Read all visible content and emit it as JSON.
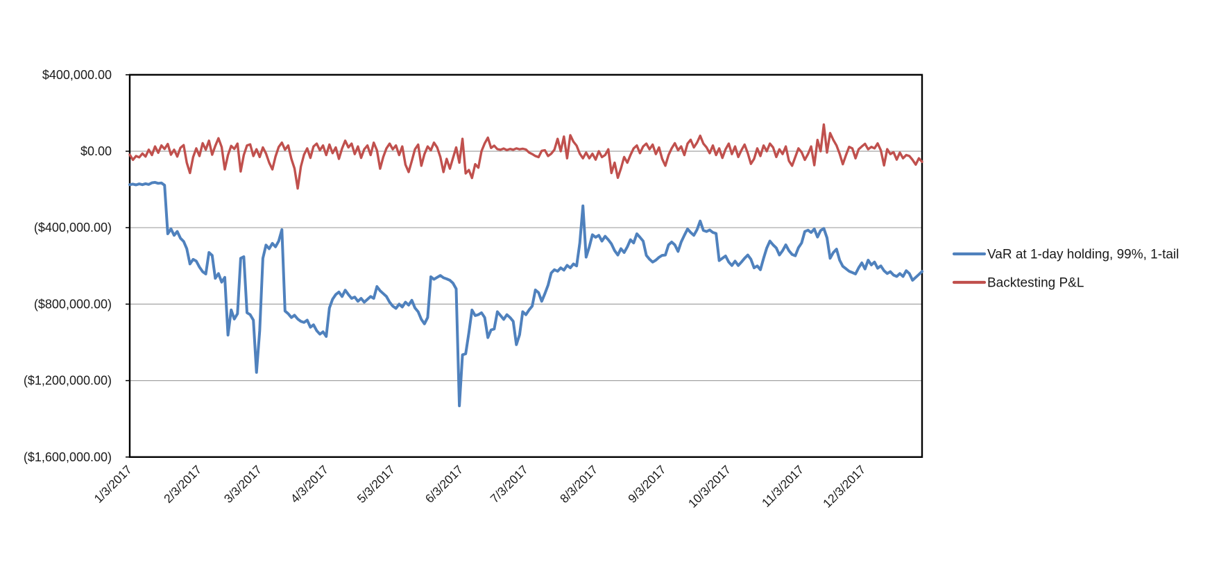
{
  "chart_data": {
    "type": "line",
    "title": "",
    "x_axis": {
      "kind": "date-category",
      "n_points": 251,
      "day_range": [
        0,
        250
      ],
      "tick_labels": [
        "1/3/2017",
        "2/3/2017",
        "3/3/2017",
        "4/3/2017",
        "5/3/2017",
        "6/3/2017",
        "7/3/2017",
        "8/3/2017",
        "9/3/2017",
        "10/3/2017",
        "11/3/2017",
        "12/3/2017"
      ],
      "tick_day_index": [
        0,
        22,
        41,
        62,
        83,
        104.5,
        125,
        147,
        168.5,
        189,
        212,
        231.5
      ],
      "tick_rotation_deg": 45
    },
    "y_axis": {
      "tick_labels": [
        "$400,000.00",
        "$0.00",
        "($400,000.00)",
        "($800,000.00)",
        "($1,200,000.00)",
        "($1,600,000.00)"
      ],
      "tick_values_usd": [
        400000,
        0,
        -400000,
        -800000,
        -1200000,
        -1600000
      ],
      "range_usd": [
        -1600000,
        400000
      ],
      "grid": true
    },
    "legend": {
      "position": "right"
    },
    "unit_note": "series values are approximate, in thousands of USD, one value per trading day of 2017 (Jan 3 - Dec 29)",
    "series": [
      {
        "name": "VaR at 1-day holding, 99%, 1-tail",
        "color": "#4F81BD",
        "values_k_usd": [
          -175,
          -172,
          -176,
          -171,
          -175,
          -170,
          -174,
          -165,
          -163,
          -168,
          -166,
          -178,
          -432,
          -406,
          -440,
          -420,
          -455,
          -472,
          -510,
          -590,
          -566,
          -575,
          -606,
          -630,
          -642,
          -530,
          -545,
          -665,
          -640,
          -685,
          -660,
          -962,
          -830,
          -878,
          -850,
          -560,
          -552,
          -845,
          -855,
          -884,
          -1157,
          -940,
          -560,
          -491,
          -510,
          -482,
          -500,
          -470,
          -410,
          -836,
          -850,
          -870,
          -858,
          -878,
          -890,
          -896,
          -884,
          -921,
          -908,
          -939,
          -957,
          -945,
          -969,
          -820,
          -774,
          -750,
          -737,
          -760,
          -727,
          -750,
          -770,
          -763,
          -785,
          -770,
          -790,
          -775,
          -760,
          -770,
          -708,
          -730,
          -745,
          -760,
          -790,
          -810,
          -822,
          -800,
          -815,
          -790,
          -805,
          -780,
          -820,
          -840,
          -880,
          -903,
          -870,
          -657,
          -670,
          -660,
          -650,
          -662,
          -668,
          -675,
          -690,
          -720,
          -1332,
          -1065,
          -1060,
          -950,
          -831,
          -860,
          -855,
          -845,
          -870,
          -975,
          -935,
          -930,
          -840,
          -860,
          -880,
          -855,
          -870,
          -890,
          -1012,
          -960,
          -840,
          -855,
          -830,
          -810,
          -726,
          -740,
          -785,
          -745,
          -700,
          -637,
          -620,
          -628,
          -610,
          -622,
          -597,
          -610,
          -590,
          -600,
          -480,
          -286,
          -554,
          -500,
          -437,
          -450,
          -440,
          -470,
          -445,
          -463,
          -485,
          -520,
          -543,
          -510,
          -530,
          -500,
          -463,
          -480,
          -432,
          -450,
          -470,
          -545,
          -565,
          -580,
          -570,
          -555,
          -545,
          -543,
          -490,
          -475,
          -490,
          -524,
          -475,
          -440,
          -407,
          -425,
          -440,
          -410,
          -365,
          -414,
          -420,
          -412,
          -425,
          -430,
          -572,
          -560,
          -548,
          -580,
          -598,
          -575,
          -598,
          -580,
          -560,
          -543,
          -565,
          -610,
          -600,
          -620,
          -560,
          -506,
          -470,
          -490,
          -506,
          -543,
          -520,
          -490,
          -520,
          -540,
          -547,
          -505,
          -480,
          -420,
          -413,
          -425,
          -407,
          -449,
          -415,
          -404,
          -453,
          -560,
          -530,
          -512,
          -570,
          -602,
          -615,
          -628,
          -635,
          -642,
          -610,
          -584,
          -616,
          -570,
          -595,
          -580,
          -612,
          -600,
          -625,
          -640,
          -630,
          -648,
          -655,
          -640,
          -655,
          -625,
          -640,
          -675,
          -660,
          -645,
          -629
        ]
      },
      {
        "name": "Backtesting P&L",
        "color": "#C0504D",
        "values_k_usd": [
          -18,
          -45,
          -25,
          -32,
          -12,
          -28,
          8,
          -20,
          25,
          -8,
          30,
          12,
          38,
          -18,
          8,
          -28,
          18,
          32,
          -60,
          -114,
          -30,
          15,
          -25,
          42,
          8,
          55,
          -18,
          28,
          68,
          22,
          -95,
          -20,
          28,
          12,
          40,
          -106,
          -20,
          30,
          36,
          -25,
          10,
          -30,
          20,
          -12,
          -60,
          -95,
          -28,
          22,
          45,
          8,
          30,
          -40,
          -90,
          -195,
          -80,
          -18,
          15,
          -35,
          25,
          40,
          5,
          30,
          -20,
          35,
          -10,
          20,
          -40,
          15,
          55,
          20,
          40,
          -15,
          25,
          -35,
          10,
          30,
          -20,
          45,
          5,
          -91,
          -30,
          15,
          40,
          10,
          30,
          -20,
          25,
          -70,
          -109,
          -50,
          10,
          35,
          -76,
          -15,
          25,
          5,
          45,
          20,
          -30,
          -109,
          -40,
          -91,
          -36,
          20,
          -60,
          65,
          -116,
          -98,
          -140,
          -68,
          -86,
          0,
          41,
          71,
          17,
          29,
          11,
          8,
          14,
          6,
          12,
          8,
          15,
          10,
          13,
          9,
          -7,
          -15,
          -25,
          -31,
          2,
          5,
          -25,
          -13,
          8,
          65,
          0,
          77,
          -37,
          84,
          50,
          29,
          -13,
          -37,
          -7,
          -37,
          -13,
          -44,
          0,
          -31,
          -20,
          10,
          -114,
          -60,
          -139,
          -90,
          -30,
          -60,
          -20,
          15,
          30,
          -10,
          25,
          40,
          10,
          35,
          -15,
          20,
          -40,
          -76,
          -20,
          15,
          42,
          5,
          25,
          -20,
          40,
          60,
          20,
          45,
          81,
          40,
          20,
          -10,
          30,
          -20,
          15,
          -35,
          10,
          40,
          -15,
          25,
          -30,
          5,
          35,
          -10,
          -66,
          -40,
          15,
          -25,
          30,
          0,
          40,
          20,
          -30,
          10,
          -15,
          25,
          -50,
          -76,
          -30,
          15,
          -5,
          -45,
          -15,
          25,
          -73,
          59,
          0,
          140,
          -7,
          95,
          59,
          30,
          -13,
          -68,
          -20,
          23,
          15,
          -37,
          10,
          25,
          39,
          10,
          23,
          15,
          41,
          5,
          -74,
          11,
          -15,
          -5,
          -44,
          -7,
          -37,
          -20,
          -25,
          -45,
          -70,
          -37,
          -55
        ]
      }
    ]
  },
  "colors": {
    "background": "#FFFFFF",
    "plot_border": "#000000",
    "gridline": "#A3A3A3",
    "tick": "#000000",
    "text": "#1A1A1A",
    "series_var": "#4F81BD",
    "series_pnl": "#C0504D"
  }
}
